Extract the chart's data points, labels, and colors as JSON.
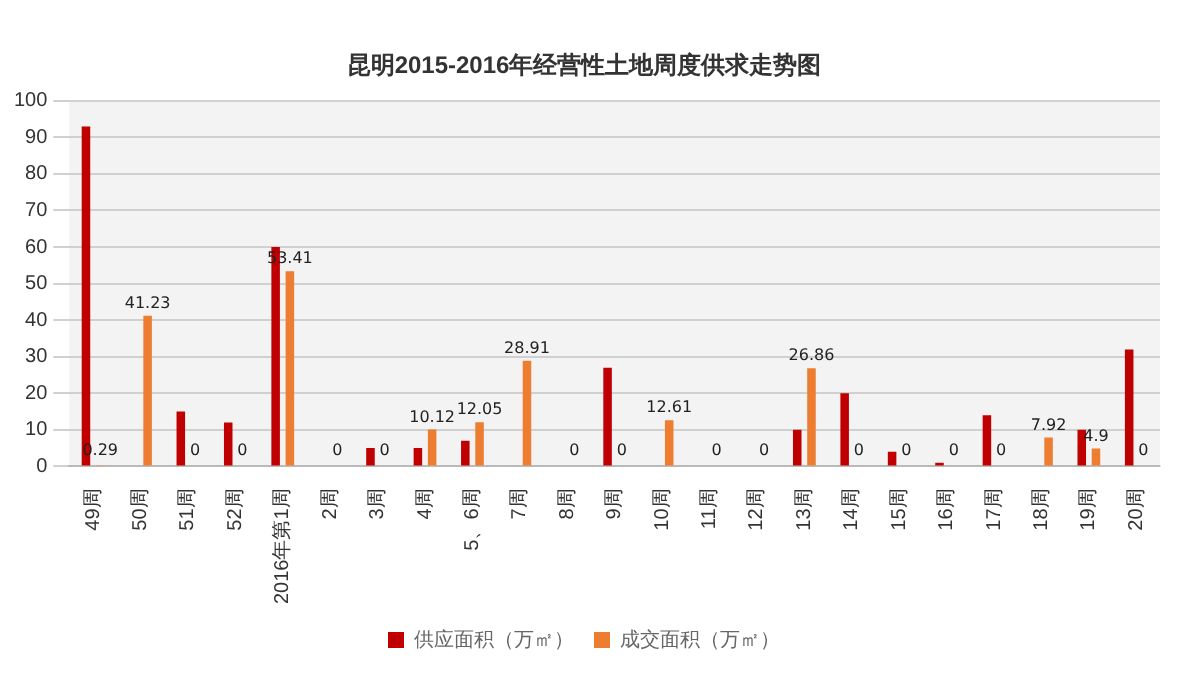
{
  "chart_data": {
    "type": "bar",
    "title": "昆明2015-2016年经营性土地周度供求走势图",
    "categories": [
      "49周",
      "50周",
      "51周",
      "52周",
      "2016年第1周",
      "2周",
      "3周",
      "4周",
      "5、6周",
      "7周",
      "8周",
      "9周",
      "10周",
      "11周",
      "12周",
      "13周",
      "14周",
      "15周",
      "16周",
      "17周",
      "18周",
      "19周",
      "20周"
    ],
    "series": [
      {
        "name": "供应面积（万㎡）",
        "color": "#c00000",
        "values": [
          93,
          0,
          15,
          12,
          60,
          0,
          5,
          5,
          7,
          0,
          0,
          27,
          0,
          0,
          0,
          10,
          20,
          4,
          1,
          14,
          0,
          10,
          32
        ]
      },
      {
        "name": "成交面积（万㎡）",
        "color": "#ed7d31",
        "values": [
          0.29,
          41.23,
          0,
          0,
          53.41,
          0,
          0,
          10.12,
          12.05,
          28.91,
          0,
          0,
          12.61,
          0,
          0,
          26.86,
          0,
          0,
          0,
          0,
          7.92,
          4.9,
          0
        ],
        "value_labels": [
          "0.29",
          "41.23",
          "0",
          "0",
          "53.41",
          "0",
          "0",
          "10.12",
          "12.05",
          "28.91",
          "0",
          "0",
          "12.61",
          "0",
          "0",
          "26.86",
          "0",
          "0",
          "0",
          "0",
          "7.92",
          "4.9",
          "0"
        ]
      }
    ],
    "ylim": [
      0,
      100
    ],
    "yticks": [
      0,
      10,
      20,
      30,
      40,
      50,
      60,
      70,
      80,
      90,
      100
    ],
    "grid": "y",
    "legend": "bottom"
  }
}
